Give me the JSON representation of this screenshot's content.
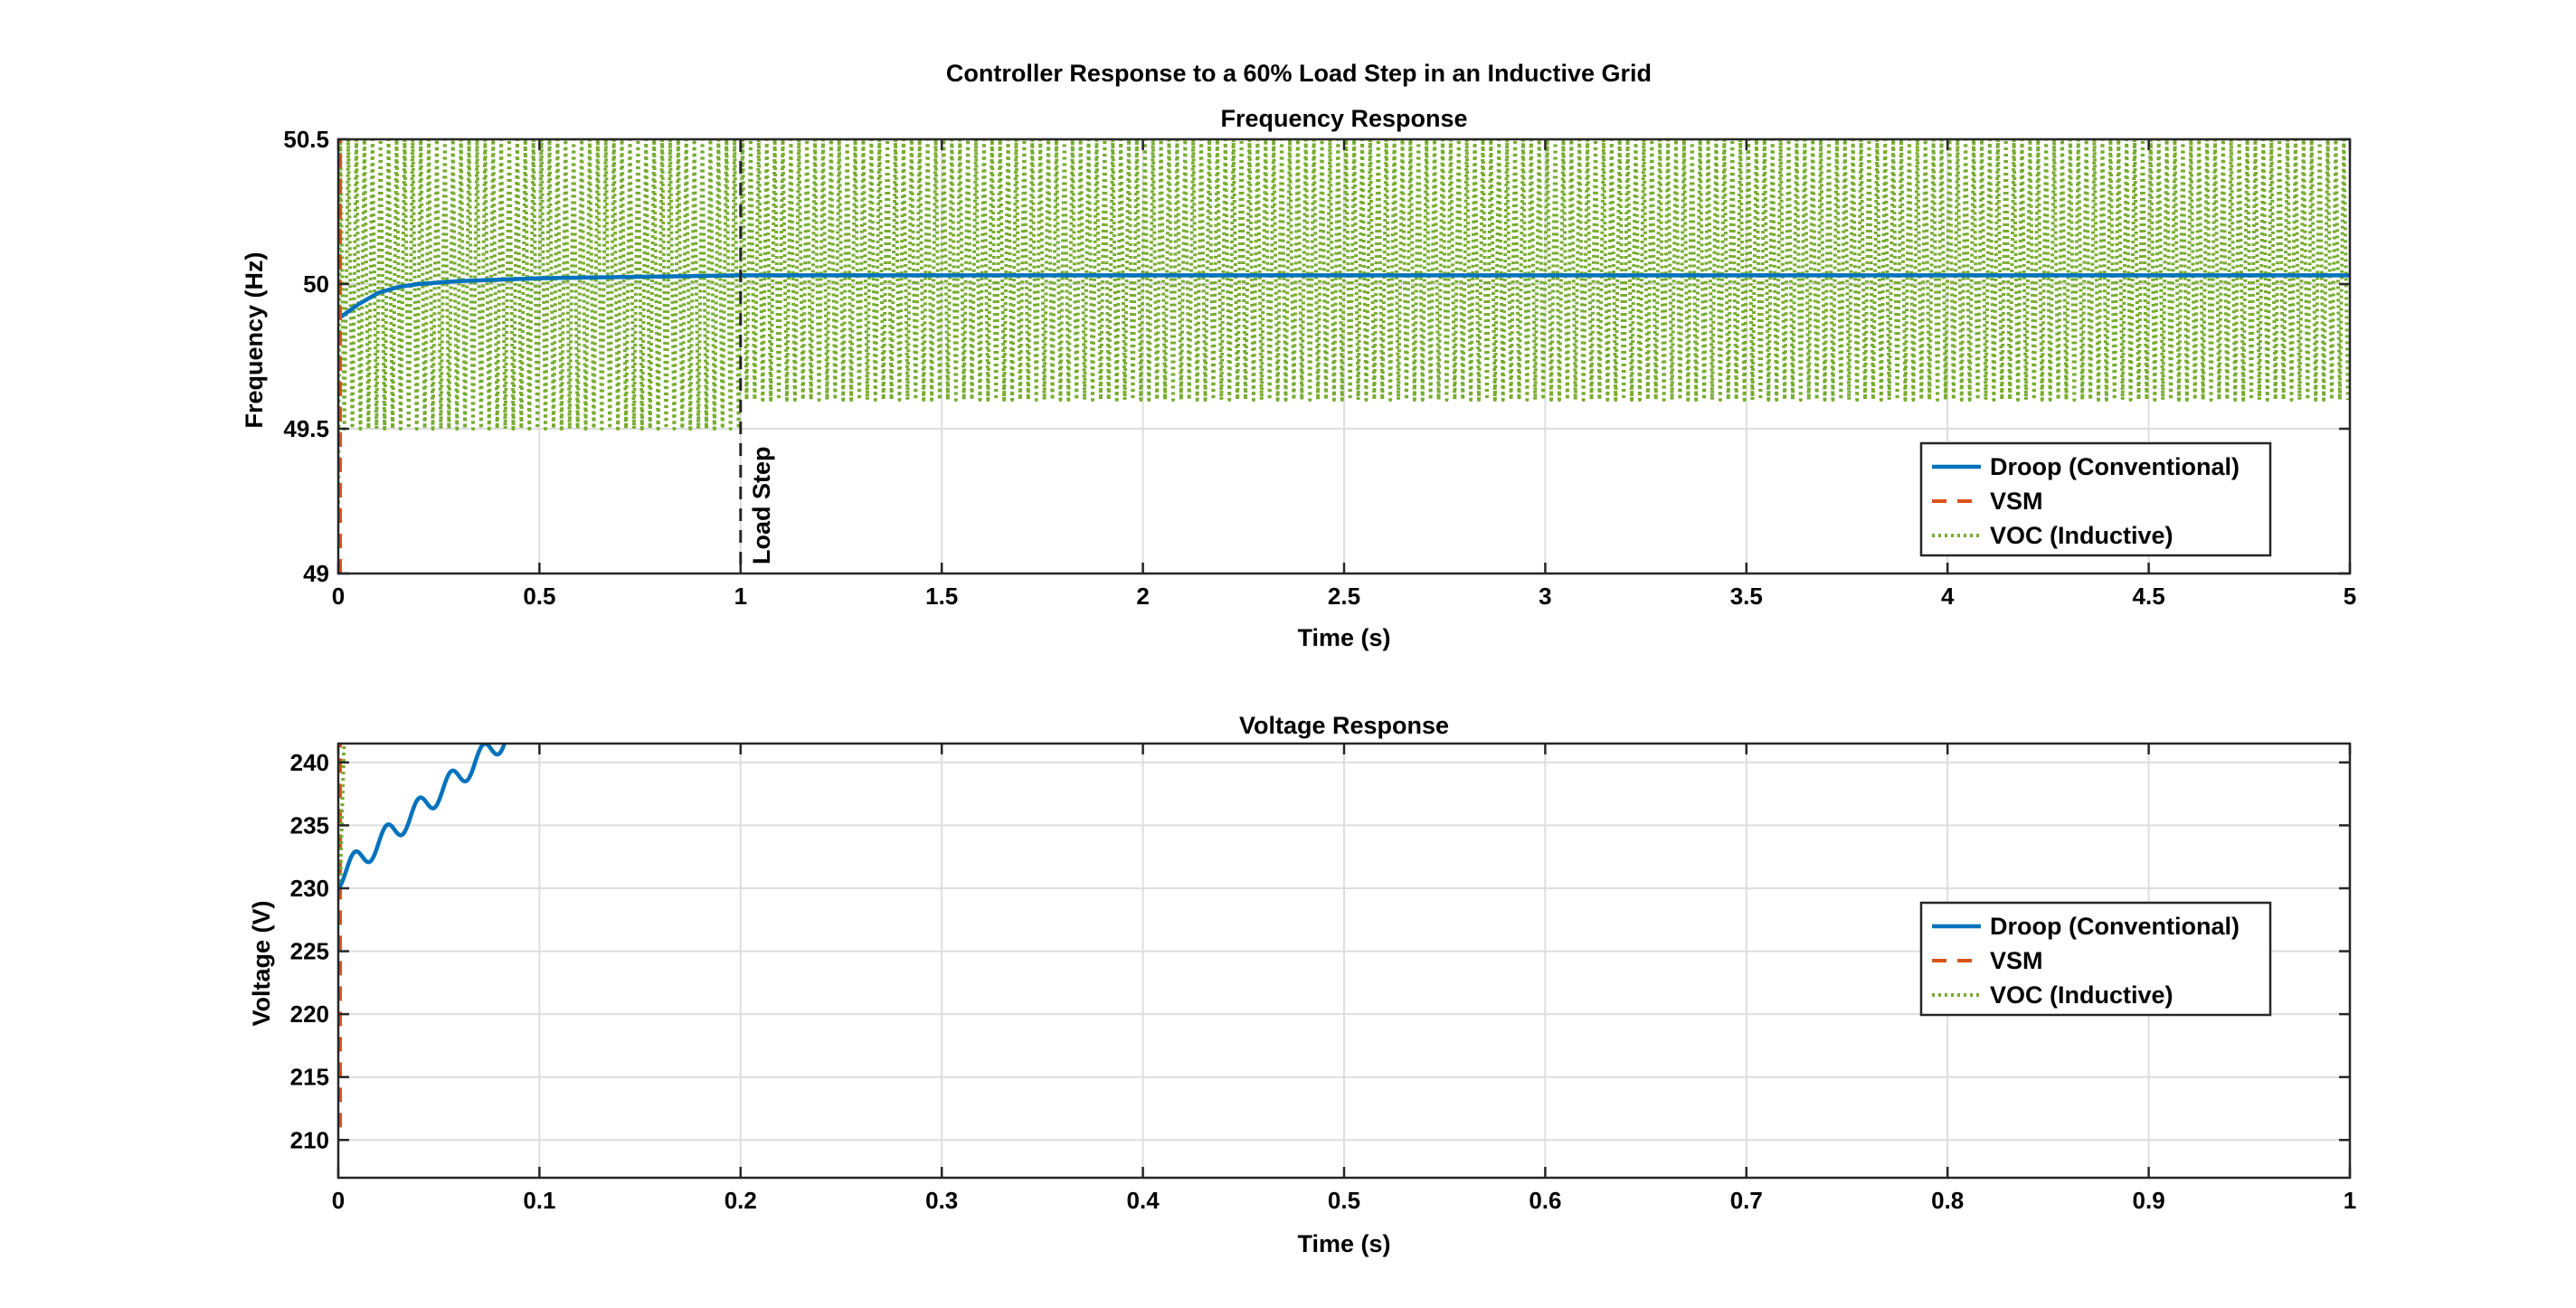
{
  "figure_title": "Controller Response to a 60% Load Step in an Inductive Grid",
  "colors": {
    "droop": "#0072BD",
    "vsm": "#D95319",
    "voc": "#77AC30",
    "annotation": "#262626"
  },
  "chart_data": [
    {
      "type": "line",
      "title": "Frequency Response",
      "xlabel": "Time (s)",
      "ylabel": "Frequency (Hz)",
      "xlim": [
        0,
        5
      ],
      "ylim": [
        49,
        50.5
      ],
      "xticks": [
        0,
        0.5,
        1,
        1.5,
        2,
        2.5,
        3,
        3.5,
        4,
        4.5,
        5
      ],
      "xtick_labels": [
        "0",
        "0.5",
        "1",
        "1.5",
        "2",
        "2.5",
        "3",
        "3.5",
        "4",
        "4.5",
        "5"
      ],
      "yticks": [
        49,
        49.5,
        50,
        50.5
      ],
      "ytick_labels": [
        "49",
        "49.5",
        "50",
        "50.5"
      ],
      "grid": true,
      "legend_position": "lower-right",
      "annotation": {
        "text": "Load Step",
        "x": 1
      },
      "series": [
        {
          "name": "Droop (Conventional)",
          "style": "solid",
          "x": [
            0,
            0.02,
            0.05,
            0.1,
            0.15,
            0.2,
            0.3,
            0.5,
            1,
            1.5,
            2,
            3,
            4,
            5
          ],
          "y": [
            49.88,
            49.9,
            49.93,
            49.97,
            49.99,
            50.0,
            50.01,
            50.02,
            50.03,
            50.03,
            50.03,
            50.03,
            50.03,
            50.03
          ]
        },
        {
          "name": "VSM",
          "style": "dashed",
          "x": [
            0,
            0,
            0
          ],
          "y": [
            49,
            50.5,
            50.5
          ]
        },
        {
          "name": "VOC (Inductive)",
          "style": "dotted",
          "oscillation": {
            "segments": [
              {
                "x_start": 0,
                "x_end": 1,
                "y_min": 49.5,
                "y_max": 50.5
              },
              {
                "x_start": 1,
                "x_end": 5,
                "y_min": 49.6,
                "y_max": 50.5
              }
            ],
            "start_y": 49.22,
            "cycles_per_second": 50
          }
        }
      ]
    },
    {
      "type": "line",
      "title": "Voltage Response",
      "xlabel": "Time (s)",
      "ylabel": "Voltage (V)",
      "xlim": [
        0,
        1
      ],
      "ylim": [
        207,
        241.5
      ],
      "xticks": [
        0,
        0.1,
        0.2,
        0.3,
        0.4,
        0.5,
        0.6,
        0.7,
        0.8,
        0.9,
        1
      ],
      "xtick_labels": [
        "0",
        "0.1",
        "0.2",
        "0.3",
        "0.4",
        "0.5",
        "0.6",
        "0.7",
        "0.8",
        "0.9",
        "1"
      ],
      "yticks": [
        210,
        215,
        220,
        225,
        230,
        235,
        240
      ],
      "ytick_labels": [
        "210",
        "215",
        "220",
        "225",
        "230",
        "235",
        "240"
      ],
      "grid": true,
      "legend_position": "right",
      "series": [
        {
          "name": "Droop (Conventional)",
          "style": "solid",
          "ramp": {
            "x_start": 0,
            "x_end": 0.086,
            "y_start": 230,
            "y_end": 241.5,
            "ripple_amplitude": 0.9,
            "ripple_period": 0.016
          }
        },
        {
          "name": "VSM",
          "style": "dashed",
          "x": [
            0,
            0
          ],
          "y": [
            211,
            241.5
          ]
        },
        {
          "name": "VOC (Inductive)",
          "style": "dotted",
          "x": [
            0,
            0.001,
            0.002
          ],
          "y": [
            230,
            236,
            241.5
          ]
        }
      ]
    }
  ]
}
